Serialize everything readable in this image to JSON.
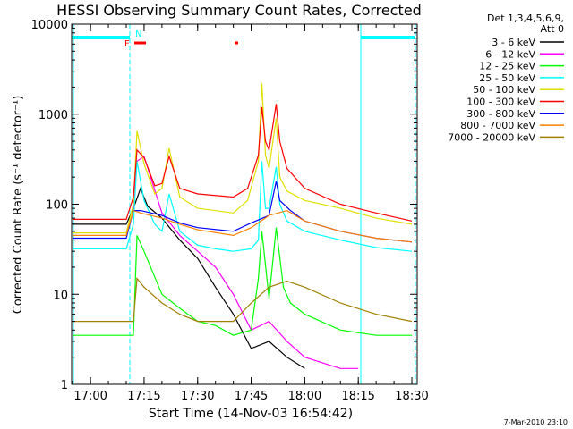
{
  "chart_data": {
    "type": "line",
    "title": "HESSI Observing Summary Count Rates, Corrected",
    "xlabel": "Start Time (14-Nov-03 16:54:42)",
    "ylabel": "Corrected Count Rate (s⁻¹ detector⁻¹)",
    "yscale": "log",
    "ylim": [
      1,
      10000
    ],
    "xlim": [
      "16:54:42",
      "18:31:30"
    ],
    "x_ticks": [
      "17:00",
      "17:15",
      "17:30",
      "17:45",
      "18:00",
      "18:15",
      "18:30"
    ],
    "y_ticks": [
      "1",
      "10",
      "100",
      "1000",
      "10000"
    ],
    "legend_position": "top-right",
    "legend_header": [
      "Det 1,3,4,5,6,9,",
      "Att 0"
    ],
    "flags": [
      {
        "label": "F",
        "color": "#ff0000"
      },
      {
        "label": "N",
        "color": "#00ffff"
      }
    ],
    "footer_date": "7-Mar-2010 23:10",
    "grid": false,
    "series": [
      {
        "name": "3 - 6 keV",
        "color": "#000000",
        "x": [
          "16:55",
          "17:10",
          "17:12",
          "17:14",
          "17:16",
          "17:20",
          "17:25",
          "17:30",
          "17:35",
          "17:40",
          "17:45",
          "17:50",
          "17:55",
          "18:00"
        ],
        "y": [
          60,
          60,
          90,
          150,
          95,
          70,
          40,
          25,
          12,
          6,
          2.5,
          3,
          2,
          1.5
        ]
      },
      {
        "name": "6 - 12 keV",
        "color": "#ff00ff",
        "x": [
          "17:12",
          "17:13",
          "17:15",
          "17:20",
          "17:25",
          "17:30",
          "17:35",
          "17:40",
          "17:45",
          "17:50",
          "17:55",
          "18:00",
          "18:10",
          "18:15"
        ],
        "y": [
          90,
          300,
          340,
          80,
          45,
          30,
          20,
          10,
          4,
          5,
          3,
          2,
          1.5,
          1.5
        ]
      },
      {
        "name": "12 - 25 keV",
        "color": "#00ff00",
        "x": [
          "16:55",
          "16:57",
          "17:00",
          "17:12",
          "17:13",
          "17:15",
          "17:20",
          "17:25",
          "17:30",
          "17:35",
          "17:40",
          "17:45",
          "17:47",
          "17:48",
          "17:50",
          "17:52",
          "17:54",
          "17:56",
          "18:00",
          "18:10",
          "18:20",
          "18:30"
        ],
        "y": [
          3.5,
          3.5,
          3.5,
          3.5,
          45,
          30,
          10,
          7,
          5,
          4.5,
          3.5,
          4,
          15,
          50,
          9,
          55,
          12,
          8,
          6,
          4,
          3.5,
          3.5
        ]
      },
      {
        "name": "25 - 50 keV",
        "color": "#00ffff",
        "x": [
          "16:55",
          "17:10",
          "17:12",
          "17:13",
          "17:15",
          "17:18",
          "17:20",
          "17:22",
          "17:25",
          "17:30",
          "17:35",
          "17:40",
          "17:45",
          "17:47",
          "17:48",
          "17:49",
          "17:50",
          "17:52",
          "17:53",
          "17:55",
          "18:00",
          "18:10",
          "18:20",
          "18:30"
        ],
        "y": [
          32,
          32,
          60,
          300,
          110,
          60,
          50,
          130,
          50,
          35,
          32,
          30,
          32,
          40,
          300,
          90,
          90,
          260,
          100,
          65,
          50,
          40,
          33,
          30
        ]
      },
      {
        "name": "50 - 100 keV",
        "color": "#e0e000",
        "x": [
          "16:55",
          "17:10",
          "17:12",
          "17:13",
          "17:15",
          "17:18",
          "17:20",
          "17:22",
          "17:25",
          "17:30",
          "17:40",
          "17:44",
          "17:47",
          "17:48",
          "17:49",
          "17:50",
          "17:52",
          "17:53",
          "17:55",
          "18:00",
          "18:10",
          "18:20",
          "18:30"
        ],
        "y": [
          48,
          48,
          100,
          650,
          280,
          130,
          150,
          420,
          120,
          90,
          80,
          110,
          300,
          2200,
          350,
          250,
          900,
          200,
          140,
          110,
          90,
          70,
          60
        ]
      },
      {
        "name": "100 - 300 keV",
        "color": "#ff0000",
        "x": [
          "16:55",
          "17:10",
          "17:12",
          "17:13",
          "17:15",
          "17:18",
          "17:20",
          "17:22",
          "17:25",
          "17:30",
          "17:40",
          "17:44",
          "17:47",
          "17:48",
          "17:49",
          "17:50",
          "17:52",
          "17:53",
          "17:55",
          "18:00",
          "18:10",
          "18:20",
          "18:30"
        ],
        "y": [
          68,
          68,
          120,
          400,
          330,
          160,
          170,
          340,
          150,
          130,
          120,
          150,
          350,
          1200,
          500,
          400,
          1300,
          500,
          250,
          150,
          100,
          80,
          65
        ]
      },
      {
        "name": "300 - 800 keV",
        "color": "#0000ff",
        "x": [
          "16:55",
          "17:10",
          "17:12",
          "17:14",
          "17:20",
          "17:25",
          "17:30",
          "17:40",
          "17:45",
          "17:50",
          "17:52",
          "17:53",
          "17:56",
          "18:00",
          "18:10",
          "18:20",
          "18:30"
        ],
        "y": [
          42,
          42,
          85,
          85,
          75,
          62,
          55,
          50,
          62,
          75,
          180,
          110,
          85,
          65,
          50,
          42,
          38
        ]
      },
      {
        "name": "800 - 7000 keV",
        "color": "#ff8000",
        "x": [
          "16:55",
          "17:10",
          "17:12",
          "17:14",
          "17:20",
          "17:25",
          "17:30",
          "17:40",
          "17:45",
          "17:50",
          "17:55",
          "18:00",
          "18:10",
          "18:20",
          "18:30"
        ],
        "y": [
          45,
          45,
          85,
          80,
          70,
          60,
          52,
          45,
          55,
          75,
          85,
          65,
          50,
          42,
          38
        ]
      },
      {
        "name": "7000 - 20000 keV",
        "color": "#a08000",
        "x": [
          "16:55",
          "17:10",
          "17:12",
          "17:13",
          "17:15",
          "17:20",
          "17:25",
          "17:30",
          "17:35",
          "17:40",
          "17:45",
          "17:50",
          "17:55",
          "18:00",
          "18:10",
          "18:20",
          "18:30"
        ],
        "y": [
          5,
          5,
          5,
          15,
          12,
          8,
          6,
          5,
          5,
          5,
          8,
          12,
          14,
          12,
          8,
          6,
          5
        ]
      }
    ]
  }
}
